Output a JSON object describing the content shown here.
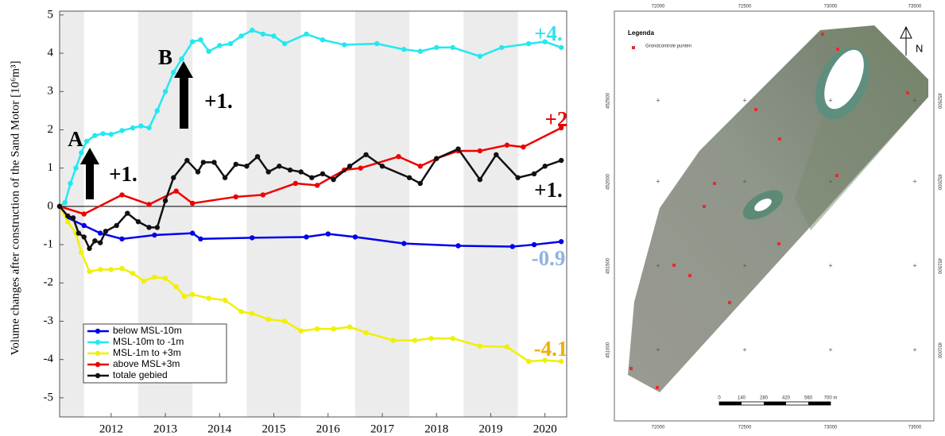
{
  "chart_data": {
    "type": "line",
    "y_label": "Volume changes after construction of the Sand Motor [10⁶m³]",
    "xlim": [
      2011.55,
      2020.9
    ],
    "xticks": [
      {
        "value": 2012.5,
        "label": "2012"
      },
      {
        "value": 2013.5,
        "label": "2013"
      },
      {
        "value": 2014.5,
        "label": "2014"
      },
      {
        "value": 2015.5,
        "label": "2015"
      },
      {
        "value": 2016.5,
        "label": "2016"
      },
      {
        "value": 2017.5,
        "label": "2017"
      },
      {
        "value": 2018.5,
        "label": "2018"
      },
      {
        "value": 2019.5,
        "label": "2019"
      },
      {
        "value": 2020.5,
        "label": "2020"
      }
    ],
    "ylim": [
      -5.5,
      5.1
    ],
    "yticks": [
      -5,
      -4,
      -3,
      -2,
      -1,
      0,
      1,
      2,
      3,
      4,
      5
    ],
    "legend": "lower left",
    "series": [
      {
        "name": "below MSL-10m",
        "color": "#0000ee",
        "x": [
          2011.55,
          2011.7,
          2012.0,
          2012.3,
          2012.7,
          2013.3,
          2014.0,
          2014.15,
          2015.1,
          2016.1,
          2016.5,
          2017.0,
          2017.9,
          2018.9,
          2019.9,
          2020.3,
          2020.8
        ],
        "values": [
          0,
          -0.3,
          -0.5,
          -0.7,
          -0.85,
          -0.75,
          -0.7,
          -0.85,
          -0.82,
          -0.8,
          -0.72,
          -0.8,
          -0.97,
          -1.03,
          -1.05,
          -1.0,
          -0.92
        ]
      },
      {
        "name": "MSL-10m to -1m",
        "color": "#22e8f0",
        "x": [
          2011.55,
          2011.65,
          2011.75,
          2011.85,
          2011.95,
          2012.05,
          2012.2,
          2012.35,
          2012.5,
          2012.7,
          2012.9,
          2013.05,
          2013.2,
          2013.35,
          2013.5,
          2013.65,
          2013.8,
          2014.0,
          2014.15,
          2014.3,
          2014.5,
          2014.7,
          2014.9,
          2015.1,
          2015.3,
          2015.5,
          2015.7,
          2016.1,
          2016.4,
          2016.8,
          2017.4,
          2017.9,
          2018.2,
          2018.5,
          2018.8,
          2019.3,
          2019.7,
          2020.2,
          2020.5,
          2020.8
        ],
        "values": [
          0,
          0.1,
          0.6,
          1.0,
          1.4,
          1.7,
          1.85,
          1.9,
          1.88,
          1.98,
          2.05,
          2.1,
          2.05,
          2.5,
          3.0,
          3.5,
          3.85,
          4.3,
          4.35,
          4.05,
          4.2,
          4.25,
          4.45,
          4.6,
          4.5,
          4.45,
          4.25,
          4.5,
          4.35,
          4.22,
          4.25,
          4.1,
          4.05,
          4.15,
          4.15,
          3.92,
          4.15,
          4.25,
          4.3,
          4.15
        ]
      },
      {
        "name": "MSL-1m to +3m",
        "color": "#f0f000",
        "x": [
          2011.55,
          2011.7,
          2011.85,
          2011.95,
          2012.1,
          2012.3,
          2012.5,
          2012.7,
          2012.9,
          2013.1,
          2013.3,
          2013.5,
          2013.7,
          2013.85,
          2014.0,
          2014.3,
          2014.6,
          2014.9,
          2015.1,
          2015.4,
          2015.7,
          2016.0,
          2016.3,
          2016.6,
          2016.9,
          2017.2,
          2017.7,
          2018.1,
          2018.4,
          2018.8,
          2019.3,
          2019.8,
          2020.2,
          2020.5,
          2020.8
        ],
        "values": [
          0,
          -0.4,
          -0.7,
          -1.2,
          -1.7,
          -1.65,
          -1.65,
          -1.62,
          -1.75,
          -1.95,
          -1.85,
          -1.88,
          -2.1,
          -2.35,
          -2.3,
          -2.4,
          -2.45,
          -2.75,
          -2.8,
          -2.95,
          -3.0,
          -3.25,
          -3.2,
          -3.2,
          -3.15,
          -3.3,
          -3.5,
          -3.5,
          -3.45,
          -3.45,
          -3.65,
          -3.67,
          -4.05,
          -4.02,
          -4.05
        ]
      },
      {
        "name": "above MSL+3m",
        "color": "#ee0000",
        "x": [
          2011.55,
          2012.0,
          2012.7,
          2013.2,
          2013.7,
          2014.0,
          2014.8,
          2015.3,
          2015.9,
          2016.3,
          2016.8,
          2017.1,
          2017.8,
          2018.2,
          2018.5,
          2018.9,
          2019.3,
          2019.8,
          2020.1,
          2020.8
        ],
        "values": [
          0,
          -0.2,
          0.3,
          0.05,
          0.4,
          0.08,
          0.25,
          0.3,
          0.6,
          0.55,
          0.95,
          1.0,
          1.3,
          1.05,
          1.25,
          1.45,
          1.45,
          1.6,
          1.55,
          2.05
        ]
      },
      {
        "name": "totale gebied",
        "color": "#111111",
        "x": [
          2011.55,
          2011.7,
          2011.8,
          2011.9,
          2012.0,
          2012.1,
          2012.2,
          2012.3,
          2012.4,
          2012.6,
          2012.8,
          2013.0,
          2013.2,
          2013.35,
          2013.5,
          2013.65,
          2013.9,
          2014.1,
          2014.2,
          2014.4,
          2014.6,
          2014.8,
          2015.0,
          2015.2,
          2015.4,
          2015.6,
          2015.8,
          2016.0,
          2016.2,
          2016.4,
          2016.6,
          2016.9,
          2017.2,
          2017.5,
          2018.0,
          2018.2,
          2018.5,
          2018.9,
          2019.3,
          2019.6,
          2020.0,
          2020.3,
          2020.5,
          2020.8
        ],
        "values": [
          0,
          -0.25,
          -0.3,
          -0.7,
          -0.8,
          -1.1,
          -0.9,
          -0.95,
          -0.65,
          -0.5,
          -0.18,
          -0.4,
          -0.55,
          -0.55,
          0.15,
          0.75,
          1.2,
          0.9,
          1.15,
          1.15,
          0.75,
          1.1,
          1.05,
          1.3,
          0.9,
          1.05,
          0.95,
          0.9,
          0.75,
          0.85,
          0.7,
          1.05,
          1.35,
          1.05,
          0.75,
          0.6,
          1.25,
          1.5,
          0.7,
          1.35,
          0.75,
          0.85,
          1.05,
          1.2
        ]
      }
    ],
    "annotations": [
      "+4.",
      "+2",
      "+1.",
      "-0.9",
      "-4.1",
      "A",
      "+1.",
      "B",
      "+1."
    ]
  },
  "map": {
    "legend_title": "Legenda",
    "legend_item": "Grondcontrole punten",
    "north": "N",
    "x_labels": [
      "72000",
      "72500",
      "73000",
      "73500"
    ],
    "y_labels": [
      "452500",
      "452000",
      "451500",
      "451000"
    ],
    "scale_labels": [
      "0",
      "140",
      "280",
      "420",
      "560",
      "700 m"
    ]
  }
}
